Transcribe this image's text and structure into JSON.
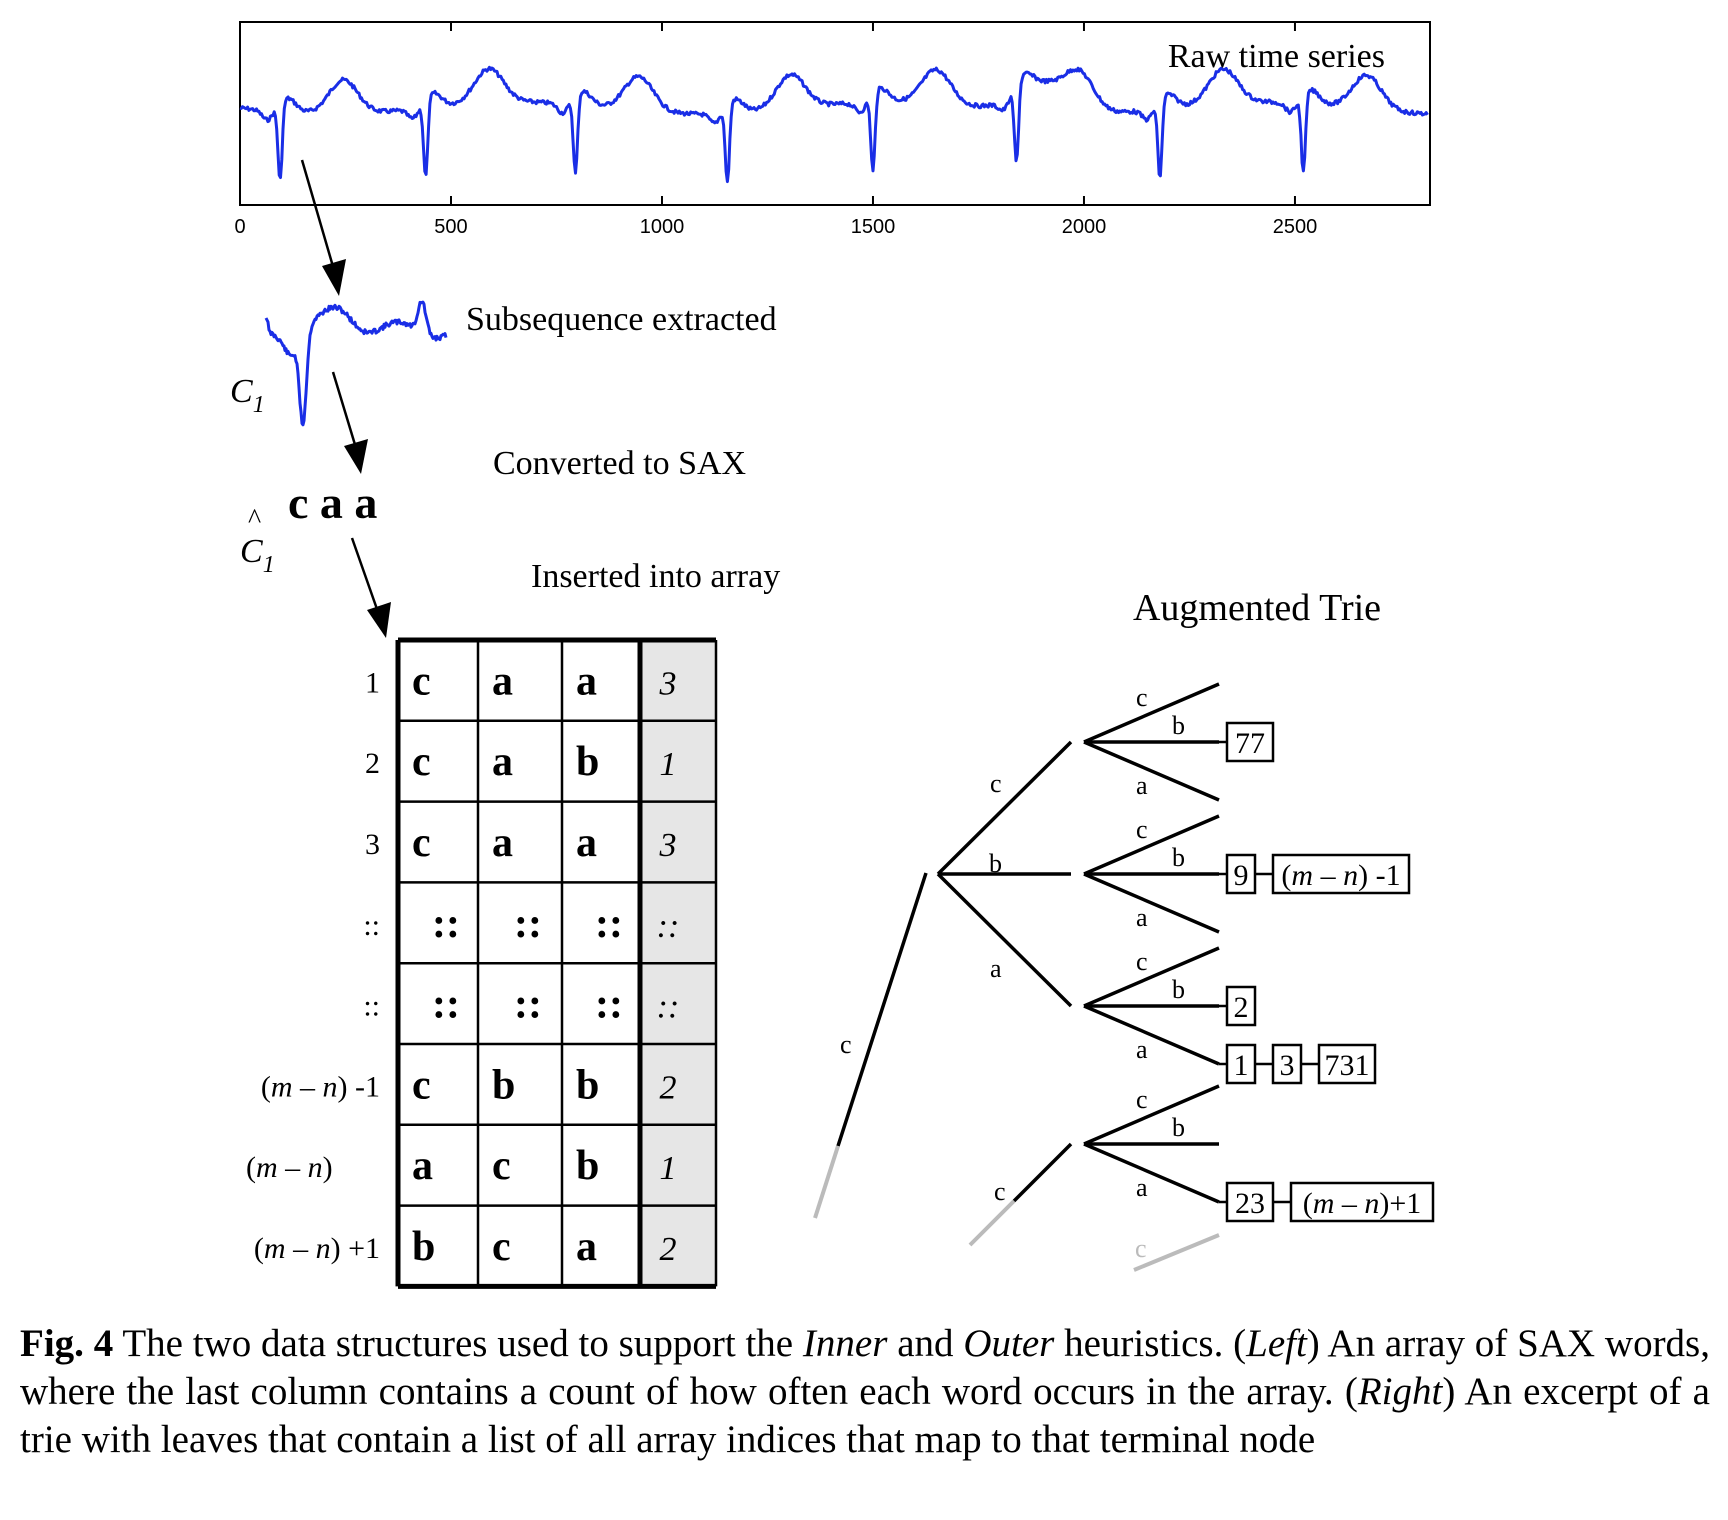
{
  "raw_series": {
    "label": "Raw time series",
    "x_ticks": [
      "0",
      "500",
      "1000",
      "1500",
      "2000",
      "2500"
    ],
    "x_tick_values": [
      0,
      500,
      1000,
      1500,
      2000,
      2500
    ],
    "xlim": [
      0,
      2820
    ],
    "color": "#1a2ee6",
    "beat_peaks_x": [
      95,
      440,
      795,
      1155,
      1500,
      1840,
      2180,
      2520
    ]
  },
  "subsequence": {
    "label": "Subsequence extracted",
    "name": "C",
    "subscript": "1"
  },
  "sax": {
    "label": "Converted to SAX",
    "word": "c a a",
    "name": "C",
    "hat": "^",
    "subscript": "1"
  },
  "array": {
    "label": "Inserted into array",
    "row_labels": [
      "1",
      "2",
      "3",
      "::",
      "::",
      "(m – n) -1",
      "(m – n)",
      "(m – n) +1"
    ],
    "rows": [
      [
        "c",
        "a",
        "a",
        "3"
      ],
      [
        "c",
        "a",
        "b",
        "1"
      ],
      [
        "c",
        "a",
        "a",
        "3"
      ],
      [
        "::",
        "::",
        "::",
        "::"
      ],
      [
        "::",
        "::",
        "::",
        "::"
      ],
      [
        "c",
        "b",
        "b",
        "2"
      ],
      [
        "a",
        "c",
        "b",
        "1"
      ],
      [
        "b",
        "c",
        "a",
        "2"
      ]
    ],
    "count_fill": "#e6e6e6"
  },
  "trie": {
    "title": "Augmented Trie",
    "root_label": "c",
    "level1_labels": [
      "c",
      "b",
      "a"
    ],
    "level2_labels": [
      "c",
      "b",
      "a"
    ],
    "faded_labels": [
      "c",
      "c"
    ],
    "leaves": {
      "cb": [
        "77"
      ],
      "bb": [
        "9",
        "(m – n) -1"
      ],
      "ab": [
        "2"
      ],
      "aa": [
        "1",
        "3",
        "731"
      ],
      "ca": [
        "23",
        "(m – n)+1"
      ]
    },
    "faded_color": "#bbbbbb"
  },
  "caption": {
    "fig": "Fig. 4",
    "t1": "  The two data structures used to support the ",
    "inner": "Inner",
    "t2": " and ",
    "outer": "Outer",
    "t3": " heuristics. (",
    "left": "Left",
    "t4": ") An array of SAX words, where the last column contains a count of how often each word occurs in the array. (",
    "right": "Right",
    "t5": ") An excerpt of a trie with leaves that contain a list of all array indices that map to that terminal node"
  }
}
